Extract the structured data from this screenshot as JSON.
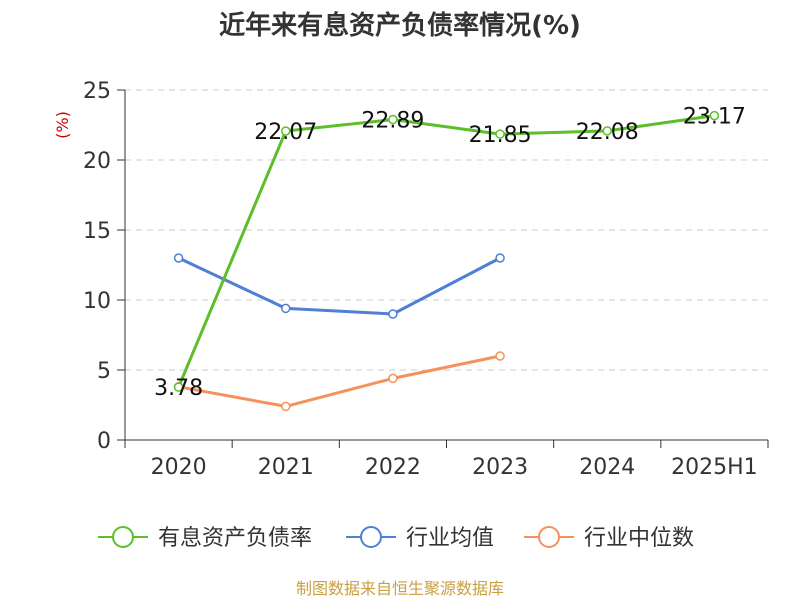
{
  "chart_data": {
    "type": "line",
    "title": "近年来有息资产负债率情况(%)",
    "y_unit": "(%)",
    "categories": [
      "2020",
      "2021",
      "2022",
      "2023",
      "2024",
      "2025H1"
    ],
    "ylim": [
      0,
      25
    ],
    "yticks": [
      "0",
      "5",
      "10",
      "15",
      "20",
      "25"
    ],
    "grid": true,
    "legend_position": "bottom",
    "series": [
      {
        "name": "有息资产负债率",
        "color": "#5cbf2a",
        "values": [
          3.78,
          22.07,
          22.89,
          21.85,
          22.08,
          23.17
        ],
        "labels": [
          "3.78",
          "22.07",
          "22.89",
          "21.85",
          "22.08",
          "23.17"
        ]
      },
      {
        "name": "行业均值",
        "color": "#4f7fd6",
        "values": [
          13.0,
          9.4,
          9.0,
          13.0,
          null,
          null
        ],
        "labels": []
      },
      {
        "name": "行业中位数",
        "color": "#f5915b",
        "values": [
          3.8,
          2.4,
          4.4,
          6.0,
          null,
          null
        ],
        "labels": []
      }
    ],
    "source": "制图数据来自恒生聚源数据库"
  }
}
